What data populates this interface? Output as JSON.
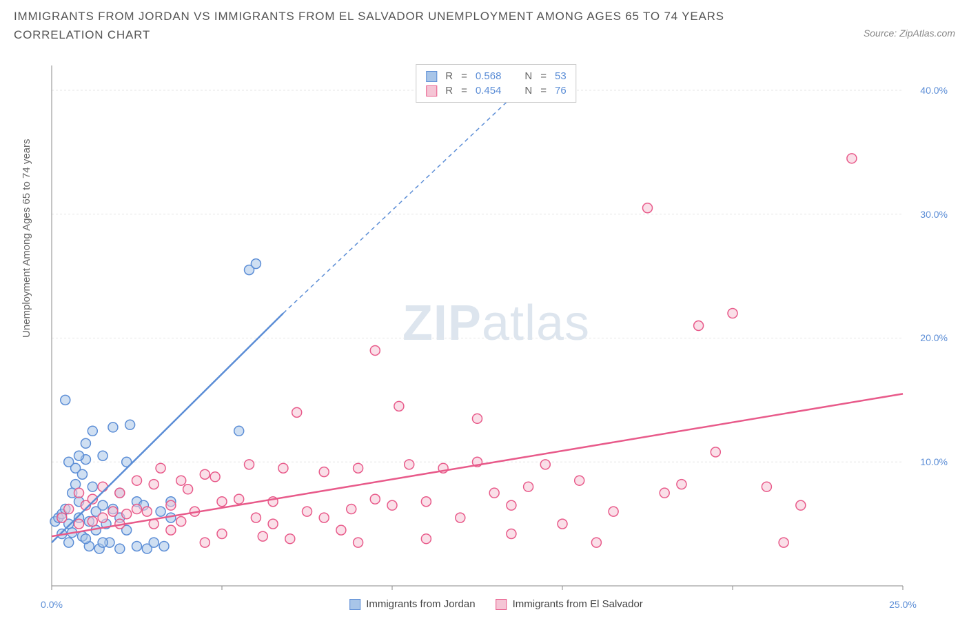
{
  "title": "IMMIGRANTS FROM JORDAN VS IMMIGRANTS FROM EL SALVADOR UNEMPLOYMENT AMONG AGES 65 TO 74 YEARS CORRELATION CHART",
  "source": "Source: ZipAtlas.com",
  "y_axis_label": "Unemployment Among Ages 65 to 74 years",
  "watermark_bold": "ZIP",
  "watermark_light": "atlas",
  "chart": {
    "type": "scatter",
    "xlim": [
      0,
      25
    ],
    "ylim": [
      0,
      42
    ],
    "x_ticks": [
      0,
      5,
      10,
      15,
      20,
      25
    ],
    "x_tick_labels": [
      "0.0%",
      "",
      "",
      "",
      "",
      "25.0%"
    ],
    "y_ticks": [
      10,
      20,
      30,
      40
    ],
    "y_tick_labels": [
      "10.0%",
      "20.0%",
      "30.0%",
      "40.0%"
    ],
    "grid_color": "#e5e5e5",
    "axis_color": "#888888",
    "background_color": "#ffffff",
    "marker_radius": 7,
    "marker_stroke_width": 1.5,
    "line_width": 2.5
  },
  "series": [
    {
      "name": "Immigrants from Jordan",
      "color_fill": "#a8c5e8",
      "color_stroke": "#5b8dd6",
      "r_value": "0.568",
      "n_value": "53",
      "trend_solid": [
        [
          0,
          3.5
        ],
        [
          6.8,
          22
        ]
      ],
      "trend_dashed": [
        [
          6.8,
          22
        ],
        [
          14.5,
          42
        ]
      ],
      "points": [
        [
          0.1,
          5.2
        ],
        [
          0.2,
          5.5
        ],
        [
          0.3,
          4.2
        ],
        [
          0.3,
          5.8
        ],
        [
          0.4,
          6.2
        ],
        [
          0.5,
          3.5
        ],
        [
          0.5,
          5.0
        ],
        [
          0.6,
          7.5
        ],
        [
          0.6,
          4.3
        ],
        [
          0.7,
          8.2
        ],
        [
          0.7,
          9.5
        ],
        [
          0.8,
          5.5
        ],
        [
          0.8,
          6.8
        ],
        [
          0.9,
          9.0
        ],
        [
          0.9,
          4.0
        ],
        [
          1.0,
          10.2
        ],
        [
          1.0,
          11.5
        ],
        [
          1.1,
          5.2
        ],
        [
          1.1,
          3.2
        ],
        [
          1.2,
          8.0
        ],
        [
          1.2,
          12.5
        ],
        [
          1.3,
          4.5
        ],
        [
          1.3,
          6.0
        ],
        [
          1.4,
          3.0
        ],
        [
          1.5,
          10.5
        ],
        [
          1.5,
          6.5
        ],
        [
          1.6,
          5.0
        ],
        [
          1.7,
          3.5
        ],
        [
          1.8,
          12.8
        ],
        [
          1.8,
          6.2
        ],
        [
          2.0,
          5.5
        ],
        [
          2.0,
          3.0
        ],
        [
          2.2,
          10.0
        ],
        [
          2.2,
          4.5
        ],
        [
          2.3,
          13.0
        ],
        [
          2.5,
          3.2
        ],
        [
          2.5,
          6.8
        ],
        [
          2.7,
          6.5
        ],
        [
          2.8,
          3.0
        ],
        [
          3.0,
          3.5
        ],
        [
          3.2,
          6.0
        ],
        [
          3.3,
          3.2
        ],
        [
          0.4,
          15.0
        ],
        [
          3.5,
          5.5
        ],
        [
          3.5,
          6.8
        ],
        [
          5.5,
          12.5
        ],
        [
          5.8,
          25.5
        ],
        [
          6.0,
          26.0
        ],
        [
          2.0,
          7.5
        ],
        [
          0.5,
          10.0
        ],
        [
          1.0,
          3.8
        ],
        [
          1.5,
          3.5
        ],
        [
          0.8,
          10.5
        ]
      ]
    },
    {
      "name": "Immigrants from El Salvador",
      "color_fill": "#f5c5d5",
      "color_stroke": "#e85a8a",
      "r_value": "0.454",
      "n_value": "76",
      "trend_solid": [
        [
          0,
          4.0
        ],
        [
          25,
          15.5
        ]
      ],
      "trend_dashed": null,
      "points": [
        [
          0.3,
          5.5
        ],
        [
          0.5,
          6.2
        ],
        [
          0.8,
          5.0
        ],
        [
          1.0,
          6.5
        ],
        [
          1.2,
          7.0
        ],
        [
          1.5,
          5.5
        ],
        [
          1.5,
          8.0
        ],
        [
          1.8,
          6.0
        ],
        [
          2.0,
          7.5
        ],
        [
          2.2,
          5.8
        ],
        [
          2.5,
          8.5
        ],
        [
          2.5,
          6.2
        ],
        [
          2.8,
          6.0
        ],
        [
          3.0,
          8.2
        ],
        [
          3.0,
          5.0
        ],
        [
          3.2,
          9.5
        ],
        [
          3.5,
          6.5
        ],
        [
          3.5,
          4.5
        ],
        [
          3.8,
          5.2
        ],
        [
          4.0,
          7.8
        ],
        [
          4.2,
          6.0
        ],
        [
          4.5,
          3.5
        ],
        [
          4.5,
          9.0
        ],
        [
          5.0,
          6.8
        ],
        [
          5.0,
          4.2
        ],
        [
          5.5,
          7.0
        ],
        [
          5.8,
          9.8
        ],
        [
          6.0,
          5.5
        ],
        [
          6.2,
          4.0
        ],
        [
          6.5,
          6.8
        ],
        [
          6.8,
          9.5
        ],
        [
          7.0,
          3.8
        ],
        [
          7.2,
          14.0
        ],
        [
          7.5,
          6.0
        ],
        [
          8.0,
          9.2
        ],
        [
          8.0,
          5.5
        ],
        [
          8.5,
          4.5
        ],
        [
          9.0,
          3.5
        ],
        [
          9.0,
          9.5
        ],
        [
          9.5,
          7.0
        ],
        [
          9.5,
          19.0
        ],
        [
          10.0,
          6.5
        ],
        [
          10.2,
          14.5
        ],
        [
          10.5,
          9.8
        ],
        [
          11.0,
          6.8
        ],
        [
          11.0,
          3.8
        ],
        [
          11.5,
          9.5
        ],
        [
          12.0,
          5.5
        ],
        [
          12.5,
          10.0
        ],
        [
          12.5,
          13.5
        ],
        [
          13.0,
          7.5
        ],
        [
          13.5,
          6.5
        ],
        [
          14.0,
          8.0
        ],
        [
          14.5,
          9.8
        ],
        [
          15.0,
          5.0
        ],
        [
          15.5,
          8.5
        ],
        [
          16.0,
          3.5
        ],
        [
          17.5,
          30.5
        ],
        [
          18.0,
          7.5
        ],
        [
          18.5,
          8.2
        ],
        [
          19.0,
          21.0
        ],
        [
          19.5,
          10.8
        ],
        [
          20.0,
          22.0
        ],
        [
          21.0,
          8.0
        ],
        [
          21.5,
          3.5
        ],
        [
          22.0,
          6.5
        ],
        [
          23.5,
          34.5
        ],
        [
          0.8,
          7.5
        ],
        [
          1.2,
          5.2
        ],
        [
          2.0,
          5.0
        ],
        [
          3.8,
          8.5
        ],
        [
          4.8,
          8.8
        ],
        [
          6.5,
          5.0
        ],
        [
          8.8,
          6.2
        ],
        [
          13.5,
          4.2
        ],
        [
          16.5,
          6.0
        ]
      ]
    }
  ],
  "legend_top": {
    "r_label": "R",
    "n_label": "N",
    "eq": "="
  }
}
